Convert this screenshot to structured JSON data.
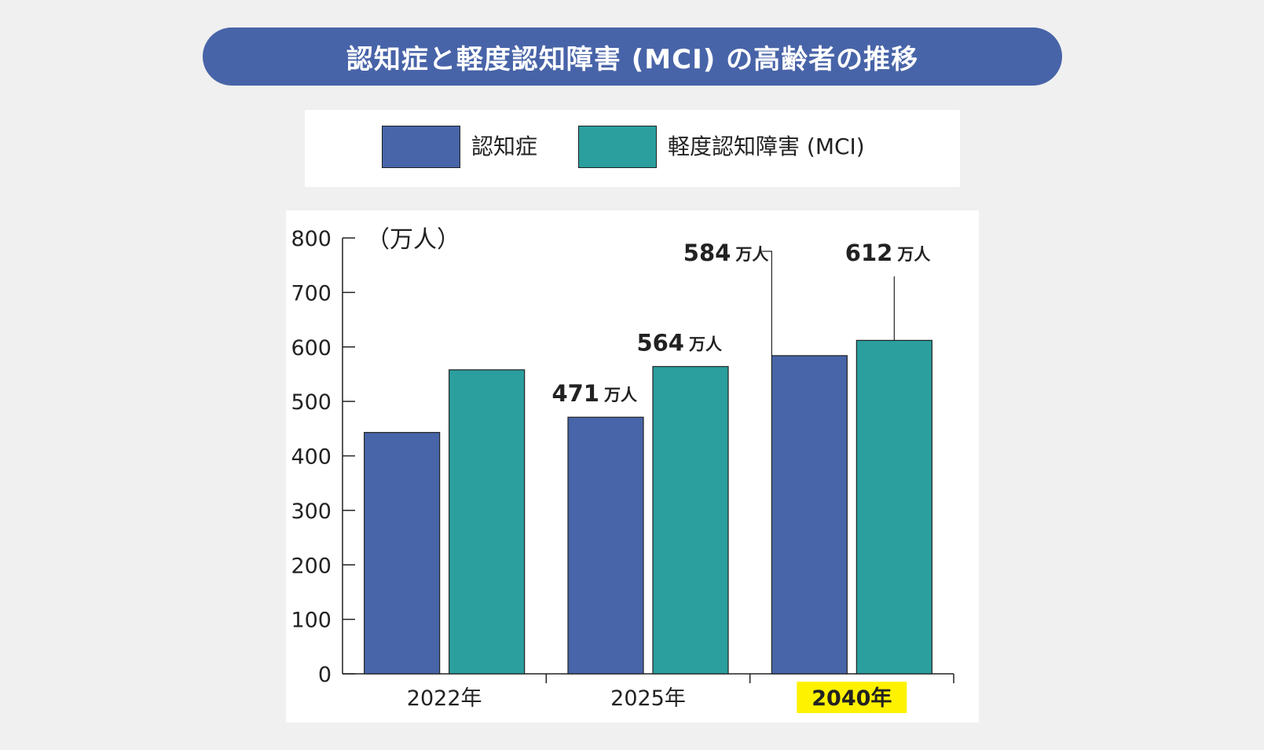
{
  "title": "認知症と軽度認知障害 (MCI) の高齢者の推移",
  "colors": {
    "title_bg": "#4864a8",
    "dementia": "#4765a8",
    "mci": "#2b9e9e",
    "highlight": "#fff200"
  },
  "legend": [
    {
      "label": "認知症",
      "color": "#4765a8"
    },
    {
      "label": "軽度認知障害 (MCI)",
      "color": "#2b9e9e"
    }
  ],
  "chart_data": {
    "type": "bar",
    "unit_label": "（万人）",
    "ylim": [
      0,
      800
    ],
    "yticks": [
      "0",
      "100",
      "200",
      "300",
      "400",
      "500",
      "600",
      "700",
      "800"
    ],
    "categories": [
      "2022年",
      "2025年",
      "2040年"
    ],
    "highlight_category": "2040年",
    "series": [
      {
        "name": "認知症",
        "values": [
          443,
          471,
          584
        ],
        "labels": [
          "",
          "471",
          "584"
        ]
      },
      {
        "name": "軽度認知障害 (MCI)",
        "values": [
          558,
          564,
          612
        ],
        "labels": [
          "",
          "564",
          "612"
        ]
      }
    ],
    "value_unit": "万人"
  }
}
